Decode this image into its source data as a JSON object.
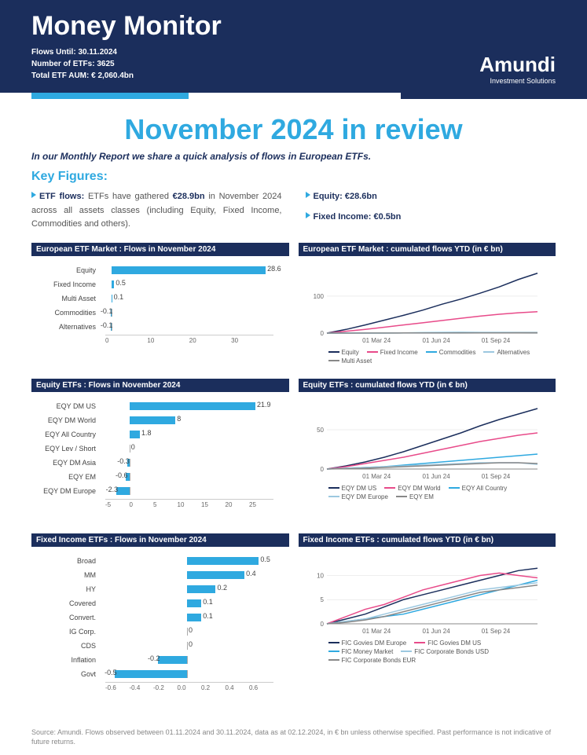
{
  "header": {
    "title": "Money Monitor",
    "meta1": "Flows Until: 30.11.2024",
    "meta2": "Number of ETFs: 3625",
    "meta3": "Total ETF AUM: € 2,060.4bn",
    "brand": "Amundi",
    "brand_sub": "Investment Solutions"
  },
  "main": {
    "title": "November 2024 in review",
    "subtitle": "In our Monthly Report we share a quick analysis of flows in European ETFs.",
    "keyfig": "Key Figures:",
    "flow_label": "ETF flows:",
    "flow_text_a": " ETFs have gathered ",
    "flow_amt": "€28.9bn",
    "flow_text_b": " in November 2024 across all assets classes (including Equity, Fixed Income, Commodities and others).",
    "equity_label": "Equity: €28.6bn",
    "fi_label": "Fixed Income: €0.5bn"
  },
  "colors": {
    "navy": "#1b2e5c",
    "blue": "#2fa9e0",
    "pink": "#e84b8a",
    "grey": "#888888",
    "lightblue": "#9cc8e0"
  },
  "chart1": {
    "title": "European ETF Market : Flows in November 2024",
    "min": -2,
    "max": 30,
    "ticks": [
      "0",
      "10",
      "20",
      "30"
    ],
    "bars": [
      {
        "label": "Equity",
        "value": 28.6,
        "show": "28.6"
      },
      {
        "label": "Fixed Income",
        "value": 0.5,
        "show": "0.5"
      },
      {
        "label": "Multi Asset",
        "value": 0.1,
        "show": "0.1"
      },
      {
        "label": "Commodities",
        "value": -0.1,
        "show": "-0.1"
      },
      {
        "label": "Alternatives",
        "value": -0.1,
        "show": "-0.1"
      }
    ]
  },
  "chart2": {
    "title": "European ETF Market : cumulated flows  YTD (in € bn)",
    "xticks": [
      "01 Mar 24",
      "01 Jun 24",
      "01 Sep 24"
    ],
    "yticks": [
      "0",
      "100"
    ],
    "ymax": 170,
    "series": [
      {
        "name": "Equity",
        "color": "#1b2e5c",
        "y": [
          0,
          10,
          22,
          35,
          48,
          62,
          78,
          92,
          108,
          125,
          145,
          162
        ]
      },
      {
        "name": "Fixed Income",
        "color": "#e84b8a",
        "y": [
          0,
          5,
          10,
          16,
          22,
          28,
          34,
          40,
          46,
          51,
          55,
          58
        ]
      },
      {
        "name": "Commodities",
        "color": "#2fa9e0",
        "y": [
          0,
          0.5,
          0.3,
          0.2,
          0.5,
          1,
          1.2,
          1.5,
          1.3,
          1.2,
          1.4,
          1.3
        ]
      },
      {
        "name": "Alternatives",
        "color": "#9cc8e0",
        "y": [
          0,
          0.1,
          0.1,
          0.2,
          0.2,
          0.3,
          0.3,
          0.3,
          0.4,
          0.4,
          0.4,
          0.3
        ]
      },
      {
        "name": "Multi Asset",
        "color": "#888888",
        "y": [
          0,
          0.1,
          0.2,
          0.3,
          0.4,
          0.5,
          0.6,
          0.7,
          0.8,
          0.9,
          1.0,
          1.1
        ]
      }
    ]
  },
  "chart3": {
    "title": "Equity ETFs : Flows in November 2024",
    "min": -5,
    "max": 25,
    "ticks": [
      "-5",
      "0",
      "5",
      "10",
      "15",
      "20",
      "25"
    ],
    "bars": [
      {
        "label": "EQY DM US",
        "value": 21.9,
        "show": "21.9"
      },
      {
        "label": "EQY DM World",
        "value": 8,
        "show": "8"
      },
      {
        "label": "EQY All Country",
        "value": 1.8,
        "show": "1.8"
      },
      {
        "label": "EQY Lev / Short",
        "value": 0,
        "show": "0"
      },
      {
        "label": "EQY DM Asia",
        "value": -0.3,
        "show": "-0.3"
      },
      {
        "label": "EQY EM",
        "value": -0.6,
        "show": "-0.6"
      },
      {
        "label": "EQY DM Europe",
        "value": -2.3,
        "show": "-2.3"
      }
    ]
  },
  "chart4": {
    "title": "Equity ETFs : cumulated flows YTD (in € bn)",
    "xticks": [
      "01 Mar 24",
      "01 Jun 24",
      "01 Sep 24"
    ],
    "yticks": [
      "0",
      "50"
    ],
    "ymax": 80,
    "series": [
      {
        "name": "EQY DM US",
        "color": "#1b2e5c",
        "y": [
          0,
          4,
          9,
          15,
          22,
          30,
          38,
          46,
          55,
          63,
          70,
          77
        ]
      },
      {
        "name": "EQY DM World",
        "color": "#e84b8a",
        "y": [
          0,
          3,
          7,
          11,
          15,
          20,
          25,
          30,
          35,
          39,
          43,
          46
        ]
      },
      {
        "name": "EQY All Country",
        "color": "#2fa9e0",
        "y": [
          0,
          1,
          2,
          3,
          5,
          7,
          9,
          11,
          13,
          15,
          17,
          19
        ]
      },
      {
        "name": "EQY DM Europe",
        "color": "#9cc8e0",
        "y": [
          0,
          1,
          2,
          3,
          4,
          5,
          6,
          7,
          8,
          8,
          8,
          6
        ]
      },
      {
        "name": "EQY EM",
        "color": "#888888",
        "y": [
          0,
          0.5,
          1,
          2,
          3,
          4,
          5,
          6,
          7,
          8,
          8,
          7
        ]
      }
    ]
  },
  "chart5": {
    "title": "Fixed Income ETFs : Flows in November 2024",
    "min": -0.6,
    "max": 0.6,
    "ticks": [
      "-0.6",
      "-0.4",
      "-0.2",
      "0.0",
      "0.2",
      "0.4",
      "0.6"
    ],
    "bars": [
      {
        "label": "Broad",
        "value": 0.5,
        "show": "0.5"
      },
      {
        "label": "MM",
        "value": 0.4,
        "show": "0.4"
      },
      {
        "label": "HY",
        "value": 0.2,
        "show": "0.2"
      },
      {
        "label": "Covered",
        "value": 0.1,
        "show": "0.1"
      },
      {
        "label": "Convert.",
        "value": 0.1,
        "show": "0.1"
      },
      {
        "label": "IG Corp.",
        "value": 0,
        "show": "0"
      },
      {
        "label": "CDS",
        "value": 0,
        "show": "0"
      },
      {
        "label": "Inflation",
        "value": -0.2,
        "show": "-0.2"
      },
      {
        "label": "Govt",
        "value": -0.5,
        "show": "-0.5"
      }
    ]
  },
  "chart6": {
    "title": "Fixed Income ETFs : cumulated flows YTD (in € bn)",
    "xticks": [
      "01 Mar 24",
      "01 Jun 24",
      "01 Sep 24"
    ],
    "yticks": [
      "0",
      "5",
      "10"
    ],
    "ymax": 13,
    "series": [
      {
        "name": "FIC Govies DM Europe",
        "color": "#1b2e5c",
        "y": [
          0,
          1,
          2,
          3.5,
          5,
          6,
          7,
          8,
          9,
          10,
          11,
          11.5
        ]
      },
      {
        "name": "FIC Govies DM US",
        "color": "#e84b8a",
        "y": [
          0,
          1.5,
          3,
          4,
          5.5,
          7,
          8,
          9,
          10,
          10.5,
          10,
          9.5
        ]
      },
      {
        "name": "FIC Money Market",
        "color": "#2fa9e0",
        "y": [
          0,
          0.5,
          1,
          1.5,
          2,
          3,
          4,
          5,
          6,
          7,
          8,
          9
        ]
      },
      {
        "name": "FIC Corporate Bonds USD",
        "color": "#9cc8e0",
        "y": [
          0,
          0.5,
          1,
          2,
          3,
          4,
          5,
          6,
          7,
          7.5,
          8,
          8.5
        ]
      },
      {
        "name": "FIC Corporate Bonds EUR",
        "color": "#888888",
        "y": [
          0,
          0.3,
          0.8,
          1.5,
          2.5,
          3.5,
          4.5,
          5.5,
          6.5,
          7,
          7.5,
          8
        ]
      }
    ]
  },
  "footnote": "Source: Amundi. Flows observed between 01.11.2024 and 30.11.2024, data as at 02.12.2024, in € bn unless otherwise specified. Past performance is not indicative of future returns."
}
